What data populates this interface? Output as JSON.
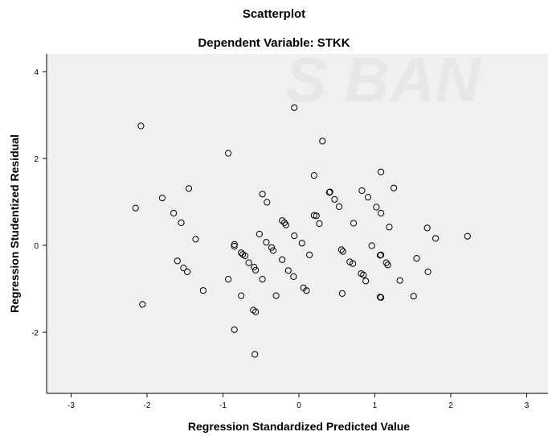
{
  "chart_data": {
    "type": "scatter",
    "title": "Scatterplot",
    "subtitle": "Dependent Variable: STKK",
    "xlabel": "Regression Standardized Predicted Value",
    "ylabel": "Regression Studentized Residual",
    "xlim": [
      -3.3,
      3.3
    ],
    "ylim": [
      -3.4,
      4.3
    ],
    "xticks": [
      -3,
      -2,
      -1,
      0,
      1,
      2,
      3
    ],
    "yticks": [
      -2,
      0,
      2,
      4
    ],
    "grid": false,
    "background": "#f0f0f0",
    "marker_color": "#000000",
    "watermark": "S BAN",
    "series": [
      {
        "points": [
          [
            -2.08,
            2.75
          ],
          [
            -2.15,
            0.86
          ],
          [
            -2.06,
            -1.36
          ],
          [
            -1.8,
            1.09
          ],
          [
            -1.65,
            0.74
          ],
          [
            -1.55,
            0.52
          ],
          [
            -1.45,
            1.31
          ],
          [
            -1.6,
            -0.36
          ],
          [
            -1.52,
            -0.52
          ],
          [
            -1.47,
            -0.61
          ],
          [
            -1.36,
            0.14
          ],
          [
            -1.26,
            -1.04
          ],
          [
            -0.93,
            2.12
          ],
          [
            -0.85,
            0.02
          ],
          [
            -0.85,
            -0.02
          ],
          [
            -0.93,
            -0.78
          ],
          [
            -0.85,
            -1.94
          ],
          [
            -0.76,
            -1.16
          ],
          [
            -0.76,
            -0.17
          ],
          [
            -0.74,
            -0.21
          ],
          [
            -0.71,
            -0.24
          ],
          [
            -0.66,
            -0.4
          ],
          [
            -0.59,
            -0.5
          ],
          [
            -0.57,
            -0.57
          ],
          [
            -0.6,
            -1.49
          ],
          [
            -0.57,
            -1.53
          ],
          [
            -0.58,
            -2.51
          ],
          [
            -0.52,
            0.26
          ],
          [
            -0.48,
            1.18
          ],
          [
            -0.42,
            0.99
          ],
          [
            -0.43,
            0.07
          ],
          [
            -0.36,
            -0.05
          ],
          [
            -0.34,
            -0.12
          ],
          [
            -0.48,
            -0.78
          ],
          [
            -0.3,
            -1.16
          ],
          [
            -0.22,
            0.57
          ],
          [
            -0.19,
            0.52
          ],
          [
            -0.17,
            0.47
          ],
          [
            -0.22,
            -0.33
          ],
          [
            -0.14,
            -0.58
          ],
          [
            -0.06,
            3.17
          ],
          [
            -0.06,
            0.22
          ],
          [
            -0.07,
            -0.72
          ],
          [
            0.04,
            0.05
          ],
          [
            0.06,
            -0.98
          ],
          [
            0.1,
            -1.04
          ],
          [
            0.14,
            -0.22
          ],
          [
            0.2,
            1.61
          ],
          [
            0.2,
            0.69
          ],
          [
            0.23,
            0.68
          ],
          [
            0.27,
            0.5
          ],
          [
            0.31,
            2.4
          ],
          [
            0.4,
            1.22
          ],
          [
            0.41,
            1.23
          ],
          [
            0.47,
            1.06
          ],
          [
            0.53,
            0.89
          ],
          [
            0.56,
            -0.1
          ],
          [
            0.58,
            -0.14
          ],
          [
            0.57,
            -1.11
          ],
          [
            0.67,
            -0.38
          ],
          [
            0.71,
            -0.42
          ],
          [
            0.72,
            0.51
          ],
          [
            0.83,
            1.26
          ],
          [
            0.82,
            -0.65
          ],
          [
            0.85,
            -0.68
          ],
          [
            0.88,
            -0.82
          ],
          [
            0.91,
            1.11
          ],
          [
            0.96,
            -0.01
          ],
          [
            1.02,
            0.88
          ],
          [
            1.08,
            1.69
          ],
          [
            1.08,
            0.74
          ],
          [
            1.07,
            -0.23
          ],
          [
            1.08,
            -0.22
          ],
          [
            1.08,
            -1.2
          ],
          [
            1.07,
            -1.19
          ],
          [
            1.15,
            -0.4
          ],
          [
            1.17,
            -0.45
          ],
          [
            1.19,
            0.42
          ],
          [
            1.25,
            1.32
          ],
          [
            1.33,
            -0.81
          ],
          [
            1.51,
            -1.17
          ],
          [
            1.55,
            -0.3
          ],
          [
            1.69,
            0.4
          ],
          [
            1.7,
            -0.61
          ],
          [
            1.8,
            0.16
          ],
          [
            2.22,
            0.21
          ]
        ]
      }
    ]
  }
}
